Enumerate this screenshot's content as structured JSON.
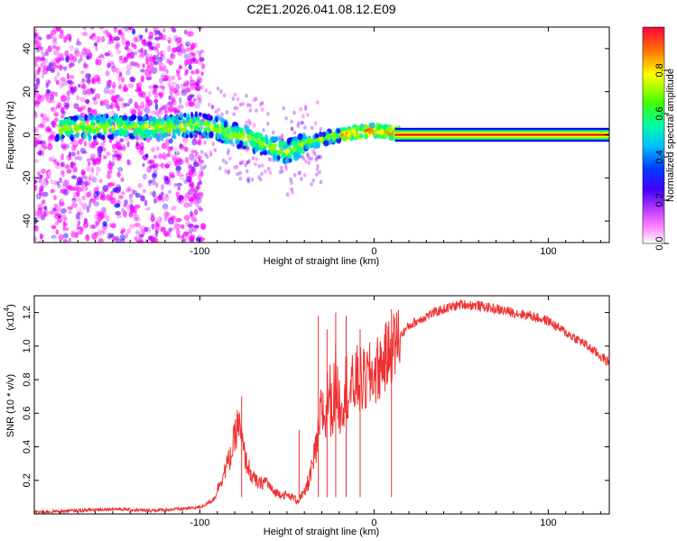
{
  "figure": {
    "title": "C2E1.2026.041.08.12.E09"
  },
  "chart_data": [
    {
      "type": "heatmap",
      "title": "",
      "xlabel": "Height of straight line (km)",
      "ylabel": "Frequency (Hz)",
      "xlim": [
        -195,
        135
      ],
      "ylim": [
        -50,
        50
      ],
      "xticks": [
        -100,
        0,
        100
      ],
      "xtick_labels": [
        "-100",
        "0",
        "100"
      ],
      "yticks": [
        -40,
        -20,
        0,
        20,
        40
      ],
      "ytick_labels": [
        "-40",
        "-20",
        "0",
        "20",
        "40"
      ],
      "colorbar": {
        "label": "Normalized spectral amplitude",
        "range": [
          0,
          1
        ],
        "ticks": [
          0,
          0.2,
          0.4,
          0.6,
          0.8
        ],
        "tick_labels": [
          "0.0",
          "0.2",
          "0.4",
          "0.6",
          "0.8"
        ],
        "colormap": [
          "#ffffff",
          "#ff00ff",
          "#8000ff",
          "#0000ff",
          "#00c0ff",
          "#00ff80",
          "#80ff00",
          "#ffff00",
          "#ff8000",
          "#ff0000"
        ]
      },
      "ridge": {
        "description_points_km": [
          -180,
          -150,
          -120,
          -100,
          -80,
          -60,
          -50,
          -45,
          -40,
          -30,
          -20,
          -10,
          0,
          10,
          20,
          135
        ],
        "frequency_hz": [
          3,
          4,
          3,
          5,
          0,
          -5,
          -8,
          -6,
          -4,
          -2,
          0,
          1,
          2,
          1,
          0,
          0
        ]
      }
    },
    {
      "type": "line",
      "title": "",
      "xlabel": "Height of straight line (km)",
      "ylabel": "SNR (10 * v/v)",
      "y_multiplier": "(x10",
      "y_multiplier_exp": "4",
      "y_multiplier_close": ")",
      "xlim": [
        -195,
        135
      ],
      "ylim": [
        0,
        1.3
      ],
      "xticks": [
        -100,
        0,
        100
      ],
      "xtick_labels": [
        "-100",
        "0",
        "100"
      ],
      "yticks": [
        0.2,
        0.4,
        0.6,
        0.8,
        1.0,
        1.2
      ],
      "ytick_labels": [
        "0.2",
        "0.4",
        "0.6",
        "0.8",
        "1.0",
        "1.2"
      ],
      "series": [
        {
          "name": "SNR",
          "color": "#f03030",
          "x": [
            -195,
            -170,
            -150,
            -130,
            -110,
            -100,
            -92,
            -88,
            -82,
            -78,
            -74,
            -70,
            -66,
            -62,
            -58,
            -50,
            -44,
            -40,
            -36,
            -32,
            -30,
            -28,
            -26,
            -24,
            -22,
            -20,
            -18,
            -16,
            -14,
            -12,
            -10,
            -6,
            -2,
            2,
            6,
            10,
            14,
            20,
            30,
            40,
            50,
            60,
            70,
            80,
            90,
            100,
            110,
            120,
            130,
            135
          ],
          "y": [
            0.01,
            0.02,
            0.03,
            0.02,
            0.03,
            0.04,
            0.08,
            0.18,
            0.32,
            0.5,
            0.3,
            0.2,
            0.16,
            0.18,
            0.12,
            0.1,
            0.08,
            0.12,
            0.25,
            0.45,
            0.65,
            0.55,
            0.75,
            0.6,
            0.82,
            0.65,
            0.7,
            0.78,
            0.72,
            0.75,
            0.8,
            0.78,
            0.82,
            0.86,
            0.92,
            0.98,
            1.05,
            1.12,
            1.18,
            1.22,
            1.25,
            1.24,
            1.22,
            1.2,
            1.18,
            1.15,
            1.08,
            1.02,
            0.94,
            0.9
          ],
          "spikes": {
            "x": [
              -76,
              -43,
              -32,
              -27,
              -22,
              -16,
              -8,
              10
            ],
            "y": [
              0.7,
              0.5,
              1.18,
              1.1,
              1.2,
              1.18,
              1.1,
              1.22
            ]
          }
        }
      ]
    }
  ]
}
